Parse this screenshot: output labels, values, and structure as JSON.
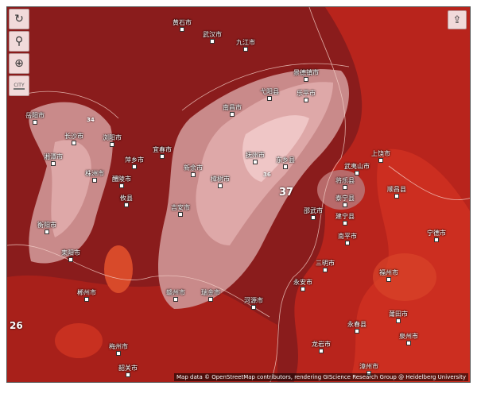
{
  "controls": {
    "refresh_icon": "refresh-icon",
    "locate_icon": "location-pin-icon",
    "zoom_icon": "zoom-in-icon",
    "city_label": "CITY",
    "share_icon": "share-icon"
  },
  "colors": {
    "base": "#8a1c1c",
    "warm": "#c62a1e",
    "hot": "#e04a2a",
    "pale": "#d9a0a0",
    "palest": "#efc6c6"
  },
  "contour_labels": [
    "37",
    "26",
    "34",
    "36"
  ],
  "cities": [
    "南昌市",
    "景德镇市",
    "乐平市",
    "弋阳县",
    "抚州市",
    "东乡县",
    "新余市",
    "樟树市",
    "吉安市",
    "宜春市",
    "萍乡市",
    "株洲市",
    "湘潭市",
    "长沙市",
    "浏阳市",
    "岳阳市",
    "醴陵市",
    "攸县",
    "衡阳市",
    "耒阳市",
    "郴州市",
    "赣州市",
    "瑞金市",
    "泰宁县",
    "建宁县",
    "将乐县",
    "邵武市",
    "顺昌县",
    "南平市",
    "三明市",
    "永安市",
    "福州市",
    "莆田市",
    "泉州市",
    "漳州市",
    "龙岩市",
    "上饶市",
    "武夷山市",
    "宁德市",
    "永春县",
    "梅州市",
    "韶关市",
    "河源市",
    "九江市",
    "黄石市",
    "武汉市"
  ],
  "attribution": "Map data © OpenStreetMap contributors, rendering GIScience Research Group @ Heidelberg University"
}
